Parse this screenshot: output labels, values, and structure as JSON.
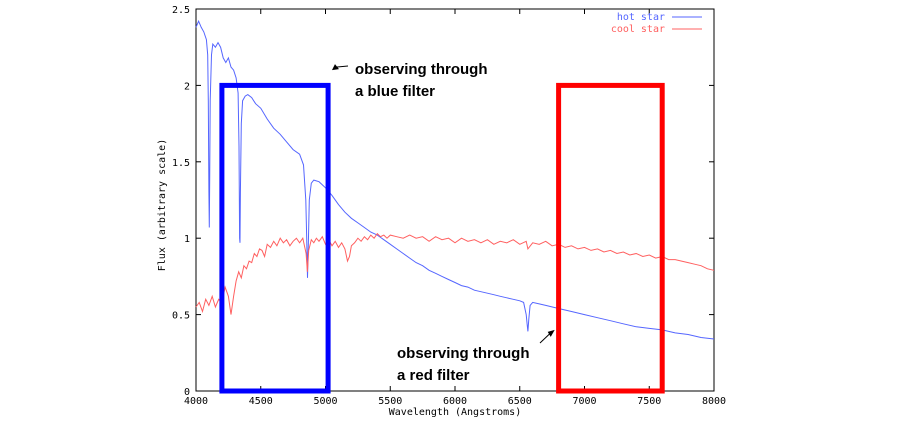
{
  "chart_data": {
    "type": "line",
    "title": "",
    "xlabel": "Wavelength (Angstroms)",
    "ylabel": "Flux (arbitrary scale)",
    "xlim": [
      4000,
      8000
    ],
    "ylim": [
      0,
      2.5
    ],
    "xticks": [
      4000,
      4500,
      5000,
      5500,
      6000,
      6500,
      7000,
      7500,
      8000
    ],
    "yticks": [
      0,
      0.5,
      1,
      1.5,
      2,
      2.5
    ],
    "ytick_labels": [
      "0",
      "0.5",
      "1",
      "1.5",
      "2",
      "2.5"
    ],
    "grid": false,
    "legend_position": "top-right",
    "series": [
      {
        "name": "hot star",
        "color": "#5566ff",
        "points": [
          [
            4000,
            2.38
          ],
          [
            4020,
            2.42
          ],
          [
            4040,
            2.38
          ],
          [
            4060,
            2.35
          ],
          [
            4080,
            2.3
          ],
          [
            4090,
            2.2
          ],
          [
            4095,
            1.9
          ],
          [
            4100,
            1.3
          ],
          [
            4103,
            1.07
          ],
          [
            4106,
            1.4
          ],
          [
            4110,
            1.9
          ],
          [
            4120,
            2.2
          ],
          [
            4130,
            2.27
          ],
          [
            4150,
            2.25
          ],
          [
            4170,
            2.28
          ],
          [
            4190,
            2.25
          ],
          [
            4210,
            2.18
          ],
          [
            4230,
            2.15
          ],
          [
            4250,
            2.18
          ],
          [
            4270,
            2.12
          ],
          [
            4290,
            2.1
          ],
          [
            4310,
            2.05
          ],
          [
            4325,
            1.95
          ],
          [
            4332,
            1.6
          ],
          [
            4337,
            1.0
          ],
          [
            4340,
            0.97
          ],
          [
            4343,
            1.3
          ],
          [
            4350,
            1.75
          ],
          [
            4360,
            1.9
          ],
          [
            4380,
            1.93
          ],
          [
            4400,
            1.94
          ],
          [
            4430,
            1.92
          ],
          [
            4460,
            1.88
          ],
          [
            4500,
            1.85
          ],
          [
            4550,
            1.78
          ],
          [
            4600,
            1.72
          ],
          [
            4650,
            1.68
          ],
          [
            4700,
            1.63
          ],
          [
            4750,
            1.58
          ],
          [
            4800,
            1.55
          ],
          [
            4830,
            1.48
          ],
          [
            4848,
            1.25
          ],
          [
            4855,
            1.0
          ],
          [
            4861,
            0.74
          ],
          [
            4867,
            0.95
          ],
          [
            4875,
            1.25
          ],
          [
            4890,
            1.36
          ],
          [
            4910,
            1.38
          ],
          [
            4950,
            1.37
          ],
          [
            5000,
            1.33
          ],
          [
            5050,
            1.28
          ],
          [
            5100,
            1.22
          ],
          [
            5150,
            1.17
          ],
          [
            5200,
            1.13
          ],
          [
            5250,
            1.1
          ],
          [
            5300,
            1.07
          ],
          [
            5350,
            1.04
          ],
          [
            5400,
            1.02
          ],
          [
            5450,
            0.99
          ],
          [
            5500,
            0.96
          ],
          [
            5550,
            0.93
          ],
          [
            5600,
            0.9
          ],
          [
            5650,
            0.87
          ],
          [
            5700,
            0.84
          ],
          [
            5750,
            0.82
          ],
          [
            5800,
            0.79
          ],
          [
            5850,
            0.77
          ],
          [
            5900,
            0.75
          ],
          [
            5950,
            0.73
          ],
          [
            6000,
            0.71
          ],
          [
            6050,
            0.69
          ],
          [
            6100,
            0.68
          ],
          [
            6150,
            0.66
          ],
          [
            6200,
            0.65
          ],
          [
            6250,
            0.64
          ],
          [
            6300,
            0.63
          ],
          [
            6350,
            0.62
          ],
          [
            6400,
            0.61
          ],
          [
            6450,
            0.6
          ],
          [
            6500,
            0.59
          ],
          [
            6530,
            0.58
          ],
          [
            6550,
            0.5
          ],
          [
            6557,
            0.44
          ],
          [
            6563,
            0.39
          ],
          [
            6570,
            0.47
          ],
          [
            6580,
            0.56
          ],
          [
            6600,
            0.58
          ],
          [
            6650,
            0.57
          ],
          [
            6700,
            0.56
          ],
          [
            6800,
            0.54
          ],
          [
            6900,
            0.52
          ],
          [
            7000,
            0.5
          ],
          [
            7100,
            0.48
          ],
          [
            7200,
            0.46
          ],
          [
            7300,
            0.44
          ],
          [
            7400,
            0.42
          ],
          [
            7500,
            0.41
          ],
          [
            7600,
            0.4
          ],
          [
            7700,
            0.38
          ],
          [
            7800,
            0.37
          ],
          [
            7900,
            0.35
          ],
          [
            8000,
            0.34
          ]
        ]
      },
      {
        "name": "cool star",
        "color": "#ff6060",
        "points": [
          [
            4000,
            0.55
          ],
          [
            4025,
            0.58
          ],
          [
            4050,
            0.52
          ],
          [
            4075,
            0.6
          ],
          [
            4100,
            0.56
          ],
          [
            4125,
            0.62
          ],
          [
            4150,
            0.55
          ],
          [
            4175,
            0.6
          ],
          [
            4200,
            0.58
          ],
          [
            4225,
            0.68
          ],
          [
            4250,
            0.62
          ],
          [
            4270,
            0.5
          ],
          [
            4290,
            0.62
          ],
          [
            4310,
            0.72
          ],
          [
            4330,
            0.78
          ],
          [
            4350,
            0.74
          ],
          [
            4370,
            0.82
          ],
          [
            4390,
            0.8
          ],
          [
            4410,
            0.85
          ],
          [
            4430,
            0.84
          ],
          [
            4450,
            0.9
          ],
          [
            4470,
            0.88
          ],
          [
            4490,
            0.93
          ],
          [
            4510,
            0.92
          ],
          [
            4530,
            0.88
          ],
          [
            4550,
            0.96
          ],
          [
            4575,
            0.94
          ],
          [
            4600,
            0.98
          ],
          [
            4625,
            0.95
          ],
          [
            4650,
            1.0
          ],
          [
            4675,
            0.97
          ],
          [
            4700,
            0.99
          ],
          [
            4725,
            0.95
          ],
          [
            4750,
            0.98
          ],
          [
            4775,
            1.0
          ],
          [
            4800,
            0.97
          ],
          [
            4825,
            1.0
          ],
          [
            4850,
            0.9
          ],
          [
            4860,
            0.78
          ],
          [
            4870,
            0.92
          ],
          [
            4890,
            0.99
          ],
          [
            4910,
            0.97
          ],
          [
            4930,
            1.0
          ],
          [
            4950,
            0.98
          ],
          [
            4975,
            1.01
          ],
          [
            5000,
            0.96
          ],
          [
            5025,
            0.99
          ],
          [
            5050,
            0.95
          ],
          [
            5075,
            0.98
          ],
          [
            5100,
            0.94
          ],
          [
            5125,
            0.97
          ],
          [
            5150,
            0.93
          ],
          [
            5170,
            0.85
          ],
          [
            5185,
            0.88
          ],
          [
            5200,
            0.95
          ],
          [
            5225,
            0.97
          ],
          [
            5250,
            1.0
          ],
          [
            5275,
            0.98
          ],
          [
            5300,
            1.01
          ],
          [
            5325,
            0.99
          ],
          [
            5350,
            1.02
          ],
          [
            5375,
            1.0
          ],
          [
            5400,
            1.03
          ],
          [
            5425,
            1.01
          ],
          [
            5450,
            1.02
          ],
          [
            5475,
            1.0
          ],
          [
            5500,
            1.02
          ],
          [
            5550,
            1.01
          ],
          [
            5600,
            1.0
          ],
          [
            5650,
            1.02
          ],
          [
            5700,
            1.0
          ],
          [
            5750,
            1.01
          ],
          [
            5800,
            0.98
          ],
          [
            5850,
            1.01
          ],
          [
            5900,
            0.99
          ],
          [
            5950,
            1.0
          ],
          [
            6000,
            0.97
          ],
          [
            6050,
            1.0
          ],
          [
            6100,
            0.98
          ],
          [
            6150,
            0.99
          ],
          [
            6200,
            0.97
          ],
          [
            6250,
            0.99
          ],
          [
            6300,
            0.96
          ],
          [
            6350,
            0.98
          ],
          [
            6400,
            0.97
          ],
          [
            6450,
            0.99
          ],
          [
            6500,
            0.96
          ],
          [
            6550,
            0.98
          ],
          [
            6563,
            0.93
          ],
          [
            6600,
            0.97
          ],
          [
            6650,
            0.96
          ],
          [
            6700,
            0.98
          ],
          [
            6750,
            0.95
          ],
          [
            6800,
            0.96
          ],
          [
            6850,
            0.94
          ],
          [
            6900,
            0.95
          ],
          [
            6950,
            0.93
          ],
          [
            7000,
            0.94
          ],
          [
            7050,
            0.92
          ],
          [
            7100,
            0.93
          ],
          [
            7150,
            0.91
          ],
          [
            7200,
            0.92
          ],
          [
            7250,
            0.9
          ],
          [
            7300,
            0.91
          ],
          [
            7350,
            0.89
          ],
          [
            7400,
            0.9
          ],
          [
            7450,
            0.88
          ],
          [
            7500,
            0.89
          ],
          [
            7550,
            0.87
          ],
          [
            7600,
            0.88
          ],
          [
            7650,
            0.86
          ],
          [
            7700,
            0.86
          ],
          [
            7750,
            0.85
          ],
          [
            7800,
            0.84
          ],
          [
            7850,
            0.83
          ],
          [
            7900,
            0.82
          ],
          [
            7950,
            0.8
          ],
          [
            8000,
            0.79
          ]
        ]
      }
    ],
    "highlight_boxes": [
      {
        "name": "blue filter",
        "color": "#0000ff",
        "x_range": [
          4200,
          5020
        ],
        "y_range": [
          0,
          2
        ]
      },
      {
        "name": "red filter",
        "color": "#ff0000",
        "x_range": [
          6800,
          7600
        ],
        "y_range": [
          0,
          2
        ]
      }
    ],
    "annotations": [
      {
        "line1": "observing through",
        "line2": "a blue filter",
        "arrow_to": [
          5050,
          2.1
        ]
      },
      {
        "line1": "observing through",
        "line2": "a red filter",
        "arrow_to": [
          6770,
          0.4
        ]
      }
    ]
  }
}
